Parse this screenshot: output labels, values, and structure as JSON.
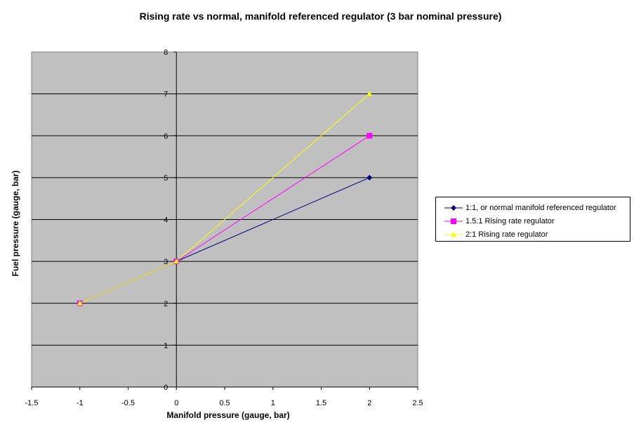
{
  "chart_data": {
    "type": "line",
    "title": "Rising rate vs normal, manifold referenced regulator (3 bar nominal pressure)",
    "xlabel": "Manifold pressure (gauge, bar)",
    "ylabel": "Fuel pressure (gauge, bar)",
    "xlim": [
      -1.5,
      2.5
    ],
    "ylim": [
      0,
      8
    ],
    "xticks": [
      "-1.5",
      "-1",
      "-0.5",
      "0",
      "0.5",
      "1",
      "1.5",
      "2",
      "2.5"
    ],
    "yticks": [
      "0",
      "1",
      "2",
      "3",
      "4",
      "5",
      "6",
      "7",
      "8"
    ],
    "grid": "horizontal",
    "legend_position": "right",
    "plot_background": "#c0c0c0",
    "series": [
      {
        "name": "1:1, or normal manifold referenced regulator",
        "color": "#000080",
        "marker": "diamond",
        "x": [
          -1,
          0,
          2
        ],
        "y": [
          2,
          3,
          5
        ]
      },
      {
        "name": "1.5:1 Rising rate regulator",
        "color": "#ff00ff",
        "marker": "square",
        "x": [
          -1,
          0,
          2
        ],
        "y": [
          2,
          3,
          6
        ]
      },
      {
        "name": "2:1 Rising rate regulator",
        "color": "#ffff00",
        "marker": "triangle",
        "x": [
          -1,
          0,
          2
        ],
        "y": [
          2,
          3,
          7
        ]
      }
    ]
  }
}
